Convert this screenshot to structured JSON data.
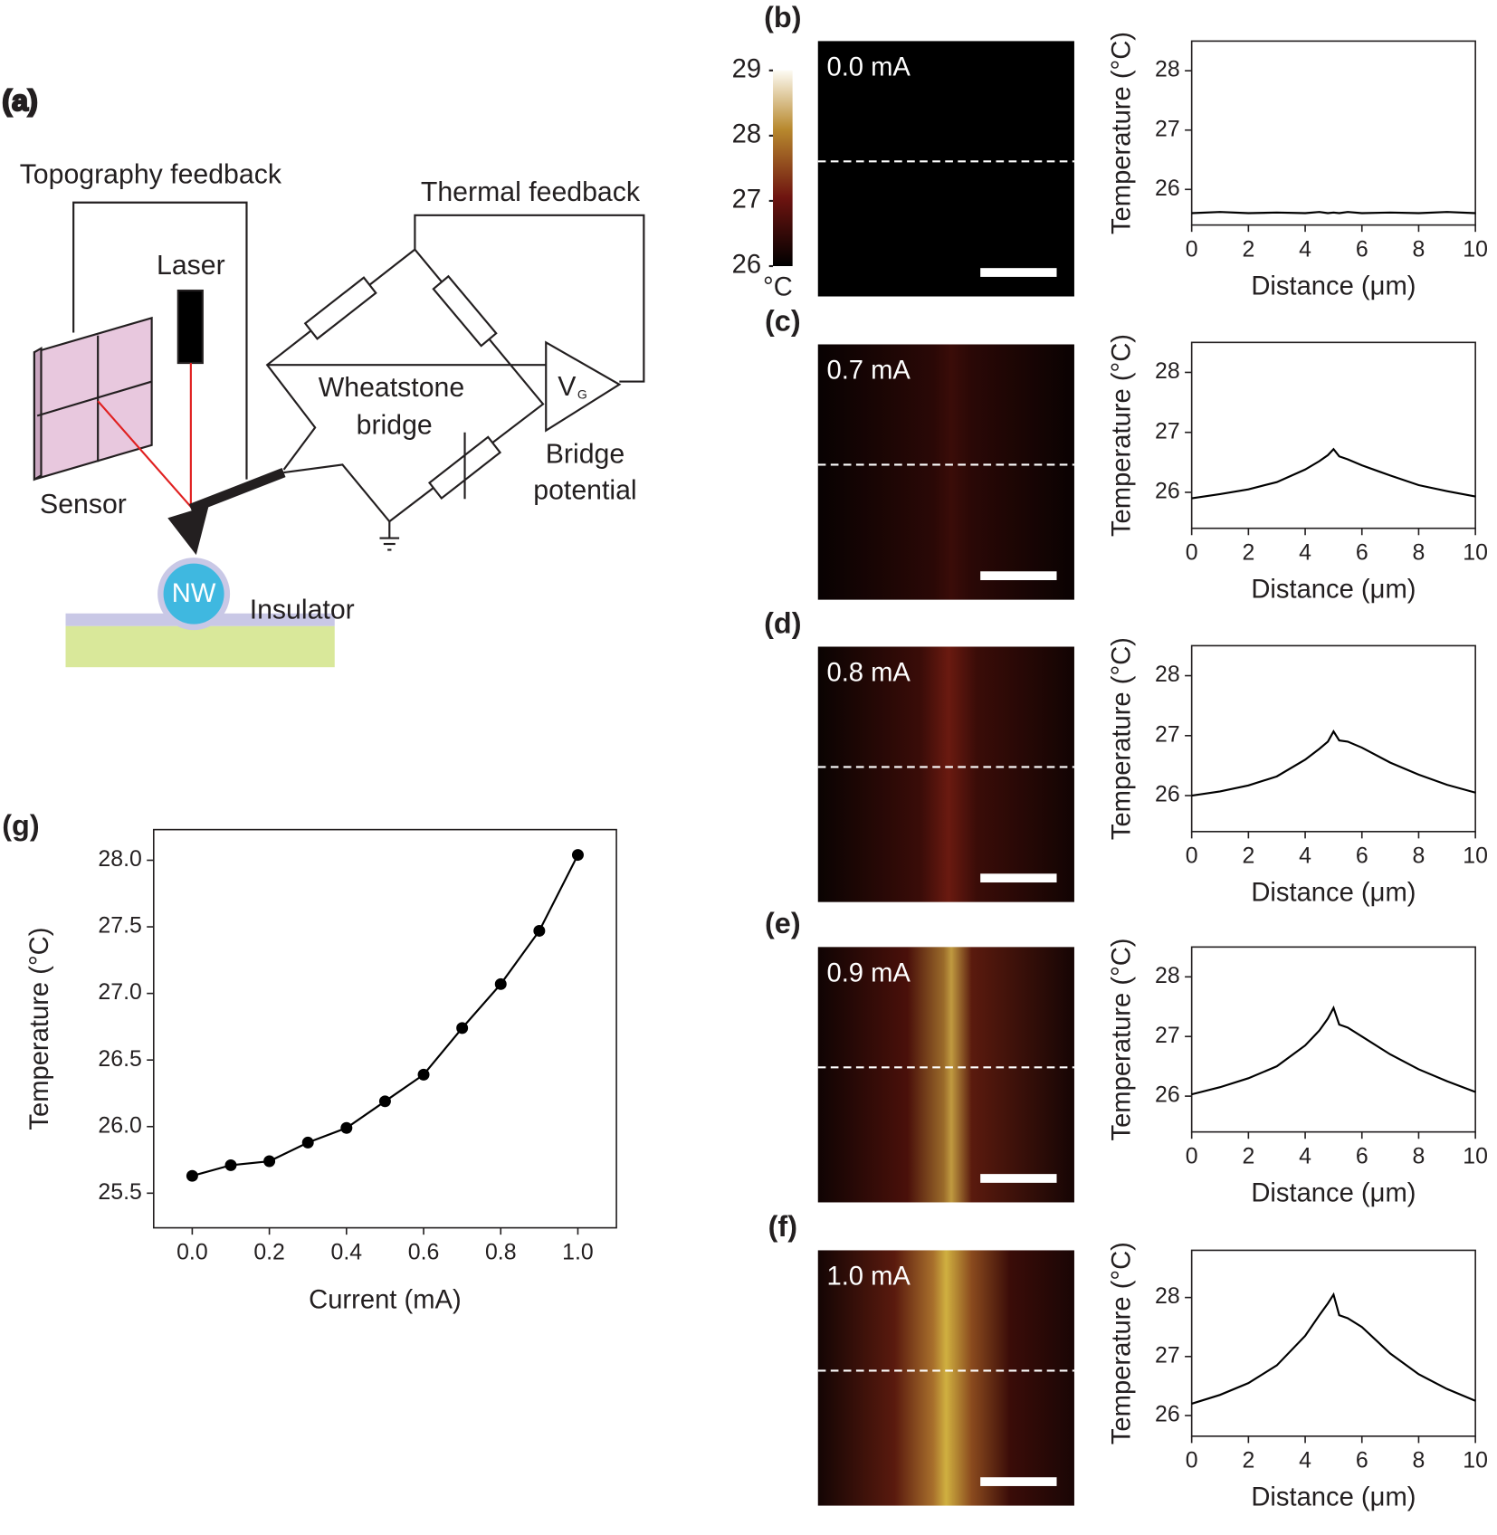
{
  "diagram": {
    "label": "(a)",
    "topography": "Topography feedback",
    "laser": "Laser",
    "thermal": "Thermal feedback",
    "wheatstone": "Wheatstone",
    "bridge": "bridge",
    "v": "V",
    "g": "G",
    "bridge_potential_1": "Bridge",
    "bridge_potential_2": "potential",
    "sensor": "Sensor",
    "nw": "NW",
    "insulator": "Insulator"
  },
  "heatmaps": [
    {
      "label": "(b)",
      "current": "0.0 mA"
    },
    {
      "label": "(c)",
      "current": "0.7 mA"
    },
    {
      "label": "(d)",
      "current": "0.8 mA"
    },
    {
      "label": "(e)",
      "current": "0.9 mA"
    },
    {
      "label": "(f)",
      "current": "1.0 mA"
    }
  ],
  "colorbar": {
    "ticks": [
      26,
      27,
      28,
      29
    ],
    "unit": "°C"
  },
  "chart_data": [
    {
      "type": "line",
      "xlabel": "Distance (μm)",
      "ylabel": "Temperature (°C)",
      "color": "#000000",
      "xlim": [
        0,
        10
      ],
      "ylim": [
        25.4,
        28.5
      ],
      "xticks": [
        0,
        2,
        4,
        6,
        8,
        10
      ],
      "yticks": [
        26,
        27,
        28
      ],
      "x": [
        0,
        1,
        2,
        3,
        4,
        4.5,
        4.8,
        5,
        5.2,
        5.5,
        6,
        7,
        8,
        9,
        10
      ],
      "values": [
        25.6,
        25.62,
        25.6,
        25.61,
        25.6,
        25.62,
        25.6,
        25.61,
        25.6,
        25.62,
        25.6,
        25.61,
        25.6,
        25.62,
        25.6
      ]
    },
    {
      "type": "line",
      "xlabel": "Distance (μm)",
      "ylabel": "Temperature (°C)",
      "color": "#000000",
      "xlim": [
        0,
        10
      ],
      "ylim": [
        25.4,
        28.5
      ],
      "xticks": [
        0,
        2,
        4,
        6,
        8,
        10
      ],
      "yticks": [
        26,
        27,
        28
      ],
      "x": [
        0,
        1,
        2,
        3,
        4,
        4.5,
        4.8,
        5,
        5.2,
        5.5,
        6,
        7,
        8,
        9,
        10
      ],
      "values": [
        25.9,
        25.97,
        26.05,
        26.17,
        26.38,
        26.52,
        26.62,
        26.72,
        26.6,
        26.55,
        26.45,
        26.28,
        26.12,
        26.02,
        25.93
      ]
    },
    {
      "type": "line",
      "xlabel": "Distance (μm)",
      "ylabel": "Temperature (°C)",
      "color": "#000000",
      "xlim": [
        0,
        10
      ],
      "ylim": [
        25.4,
        28.5
      ],
      "xticks": [
        0,
        2,
        4,
        6,
        8,
        10
      ],
      "yticks": [
        26,
        27,
        28
      ],
      "x": [
        0,
        1,
        2,
        3,
        4,
        4.5,
        4.8,
        5,
        5.2,
        5.5,
        6,
        7,
        8,
        9,
        10
      ],
      "values": [
        26.0,
        26.07,
        26.17,
        26.32,
        26.6,
        26.78,
        26.9,
        27.07,
        26.92,
        26.9,
        26.8,
        26.55,
        26.35,
        26.18,
        26.05
      ]
    },
    {
      "type": "line",
      "xlabel": "Distance (μm)",
      "ylabel": "Temperature (°C)",
      "color": "#000000",
      "xlim": [
        0,
        10
      ],
      "ylim": [
        25.4,
        28.5
      ],
      "xticks": [
        0,
        2,
        4,
        6,
        8,
        10
      ],
      "yticks": [
        26,
        27,
        28
      ],
      "x": [
        0,
        1,
        2,
        3,
        4,
        4.5,
        4.8,
        5,
        5.2,
        5.5,
        6,
        7,
        8,
        9,
        10
      ],
      "values": [
        26.03,
        26.15,
        26.3,
        26.5,
        26.85,
        27.1,
        27.3,
        27.48,
        27.2,
        27.15,
        27.0,
        26.7,
        26.45,
        26.25,
        26.07
      ]
    },
    {
      "type": "line",
      "xlabel": "Distance (μm)",
      "ylabel": "Temperature (°C)",
      "color": "#000000",
      "xlim": [
        0,
        10
      ],
      "ylim": [
        25.65,
        28.8
      ],
      "xticks": [
        0,
        2,
        4,
        6,
        8,
        10
      ],
      "yticks": [
        26,
        27,
        28
      ],
      "x": [
        0,
        1,
        2,
        3,
        4,
        4.5,
        4.8,
        5,
        5.2,
        5.5,
        6,
        7,
        8,
        9,
        10
      ],
      "values": [
        26.2,
        26.35,
        26.55,
        26.85,
        27.35,
        27.7,
        27.9,
        28.05,
        27.7,
        27.65,
        27.5,
        27.05,
        26.7,
        26.45,
        26.25
      ]
    },
    {
      "type": "line",
      "label": "(g)",
      "markers": true,
      "xlabel": "Current (mA)",
      "ylabel": "Temperature (°C)",
      "color": "#000000",
      "xlim": [
        -0.1,
        1.1
      ],
      "ylim": [
        25.24,
        28.23
      ],
      "xticks": [
        {
          "value": 0,
          "label": "0.0"
        },
        0.2,
        0.4,
        0.6,
        0.8,
        {
          "value": 1,
          "label": "1.0"
        }
      ],
      "yticks": [
        25.5,
        {
          "value": 26,
          "label": "26.0"
        },
        26.5,
        {
          "value": 27,
          "label": "27.0"
        },
        27.5,
        {
          "value": 28,
          "label": "28.0"
        }
      ],
      "x": [
        0,
        0.1,
        0.2,
        0.3,
        0.4,
        0.5,
        0.6,
        0.7,
        0.8,
        0.9,
        1
      ],
      "values": [
        25.63,
        25.71,
        25.74,
        25.88,
        25.99,
        26.19,
        26.39,
        26.74,
        27.07,
        27.47,
        28.04
      ]
    }
  ]
}
